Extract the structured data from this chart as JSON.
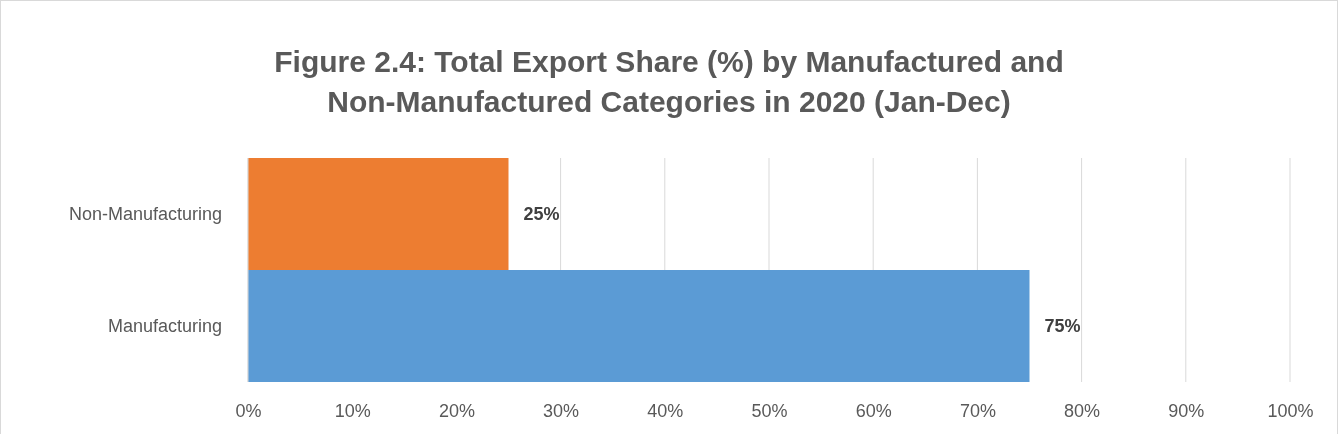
{
  "chart_data": {
    "type": "bar",
    "orientation": "horizontal",
    "title": "Figure 2.4: Total Export Share (%) by Manufactured and Non-Manufactured Categories in 2020 (Jan-Dec)",
    "categories": [
      "Non-Manufacturing",
      "Manufacturing"
    ],
    "values": [
      25,
      75
    ],
    "colors": [
      "#ed7d31",
      "#5b9bd5"
    ],
    "value_labels": [
      "25%",
      "75%"
    ],
    "xlim": [
      0,
      100
    ],
    "xticks": [
      {
        "value": 0,
        "label": "0%"
      },
      {
        "value": 10,
        "label": "10%"
      },
      {
        "value": 20,
        "label": "20%"
      },
      {
        "value": 30,
        "label": "30%"
      },
      {
        "value": 40,
        "label": "40%"
      },
      {
        "value": 50,
        "label": "50%"
      },
      {
        "value": 60,
        "label": "60%"
      },
      {
        "value": 70,
        "label": "70%"
      },
      {
        "value": 80,
        "label": "80%"
      },
      {
        "value": 90,
        "label": "90%"
      },
      {
        "value": 100,
        "label": "100%"
      }
    ],
    "grid": "x"
  }
}
